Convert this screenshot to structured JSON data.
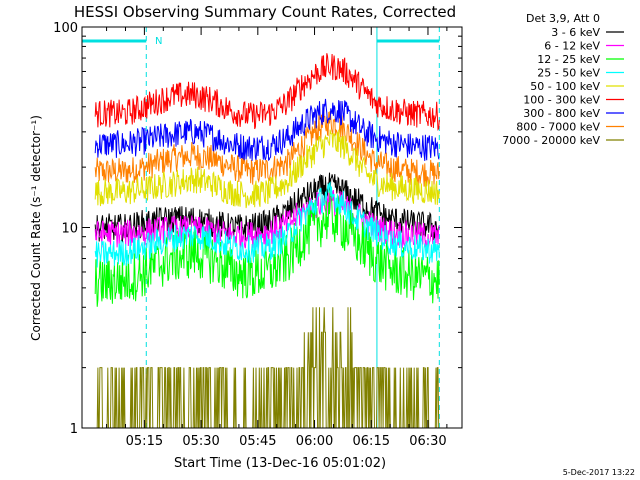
{
  "chart_data": {
    "type": "line",
    "title": "HESSI Observing Summary Count Rates, Corrected",
    "xlabel": "Start Time (13-Dec-16 05:01:02)",
    "ylabel": "Corrected Count Rate (s⁻¹ detector⁻¹)",
    "x_unit": "minutes after 05:00 UT",
    "xlim": [
      -1.5,
      99
    ],
    "ylim": [
      1,
      100
    ],
    "y_scale": "log",
    "x_ticks": [
      {
        "value": 15,
        "label": "05:15"
      },
      {
        "value": 30,
        "label": "05:30"
      },
      {
        "value": 45,
        "label": "05:45"
      },
      {
        "value": 60,
        "label": "06:00"
      },
      {
        "value": 75,
        "label": "06:15"
      },
      {
        "value": 90,
        "label": "06:30"
      }
    ],
    "y_ticks": [
      {
        "value": 1,
        "label": "1"
      },
      {
        "value": 10,
        "label": "10"
      },
      {
        "value": 100,
        "label": "100"
      }
    ],
    "legend_position": "top-right",
    "legend_header": "Det 3,9, Att 0",
    "annotation": {
      "label": "N",
      "x": 18
    },
    "night_intervals": [
      [
        -1.5,
        15.5
      ],
      [
        76.5,
        93
      ]
    ],
    "series": [
      {
        "name": "3 - 6 keV",
        "color": "#000000",
        "x": [
          2,
          10,
          15,
          22,
          28,
          33,
          38,
          43,
          48,
          53,
          57,
          61,
          64,
          67,
          70,
          73,
          76,
          80,
          85,
          93
        ],
        "y": [
          10,
          10,
          10.5,
          11,
          11,
          10.5,
          10,
          10,
          10.5,
          12,
          14,
          15.5,
          16,
          15.5,
          14,
          13,
          12,
          11,
          10.5,
          10
        ]
      },
      {
        "name": "6 - 12 keV",
        "color": "#ff00ff",
        "x": [
          2,
          10,
          15,
          22,
          28,
          33,
          38,
          43,
          48,
          53,
          57,
          61,
          64,
          67,
          70,
          73,
          76,
          80,
          85,
          93
        ],
        "y": [
          9.3,
          9.3,
          9.5,
          9.8,
          9.8,
          9.5,
          9.2,
          9.2,
          9.5,
          10.5,
          12,
          13,
          13.5,
          13,
          12,
          11,
          10,
          9.5,
          9.2,
          9
        ]
      },
      {
        "name": "12 - 25 keV",
        "color": "#00ff00",
        "x": [
          2,
          10,
          15,
          22,
          28,
          33,
          38,
          43,
          48,
          53,
          57,
          61,
          64,
          67,
          70,
          73,
          76,
          80,
          85,
          93
        ],
        "y": [
          5.3,
          5.5,
          6,
          7,
          7.5,
          7,
          6,
          5.8,
          6,
          7,
          9,
          10.5,
          11.5,
          10.5,
          9,
          8,
          7,
          6.2,
          5.8,
          5.5
        ]
      },
      {
        "name": "25 - 50 keV",
        "color": "#00ffff",
        "x": [
          2,
          10,
          15,
          22,
          28,
          33,
          38,
          43,
          48,
          53,
          57,
          61,
          64,
          67,
          70,
          73,
          76,
          80,
          85,
          93
        ],
        "y": [
          7.3,
          7.5,
          8,
          8.8,
          9.2,
          8.8,
          8,
          7.8,
          8,
          9,
          11.5,
          13.5,
          14.5,
          13.5,
          11.5,
          10.5,
          9.5,
          8.5,
          8,
          7.6
        ]
      },
      {
        "name": "50 - 100 keV",
        "color": "#e0e000",
        "x": [
          2,
          10,
          15,
          22,
          28,
          33,
          38,
          43,
          48,
          53,
          57,
          61,
          64,
          67,
          70,
          73,
          76,
          80,
          85,
          93
        ],
        "y": [
          15,
          15,
          15.5,
          16.5,
          17.5,
          16.5,
          15,
          14.5,
          15,
          17,
          21,
          25,
          27,
          26,
          23,
          19,
          17,
          16,
          15.5,
          15
        ]
      },
      {
        "name": "100 - 300 keV",
        "color": "#ff0000",
        "x": [
          2,
          10,
          15,
          22,
          28,
          33,
          38,
          43,
          48,
          53,
          57,
          61,
          64,
          67,
          70,
          73,
          76,
          80,
          85,
          93
        ],
        "y": [
          37,
          37,
          40,
          45,
          46,
          43,
          38,
          36,
          37,
          42,
          52,
          60,
          64,
          62,
          56,
          48,
          42,
          39,
          37,
          36
        ]
      },
      {
        "name": "300 - 800 keV",
        "color": "#0000ff",
        "x": [
          2,
          10,
          15,
          22,
          28,
          33,
          38,
          43,
          48,
          53,
          57,
          61,
          64,
          67,
          70,
          73,
          76,
          80,
          85,
          93
        ],
        "y": [
          26,
          26,
          27,
          29,
          30,
          28.5,
          26,
          25,
          25.5,
          28,
          33,
          37,
          39,
          38,
          34,
          30,
          28,
          26.5,
          25.5,
          25
        ]
      },
      {
        "name": "800 - 7000 keV",
        "color": "#ff8000",
        "x": [
          2,
          10,
          15,
          22,
          28,
          33,
          38,
          43,
          48,
          53,
          57,
          61,
          64,
          67,
          70,
          73,
          76,
          80,
          85,
          93
        ],
        "y": [
          19,
          19,
          20,
          22,
          23,
          22,
          20,
          19,
          19.5,
          21,
          26,
          31,
          34,
          32,
          28,
          24,
          21,
          20,
          19,
          18.5
        ]
      },
      {
        "name": "7000 - 20000 keV",
        "color": "#808000",
        "x": [
          2,
          10,
          15,
          22,
          28,
          33,
          38,
          43,
          48,
          53,
          57,
          61,
          64,
          67,
          70,
          73,
          76,
          80,
          85,
          93
        ],
        "y": [
          1,
          1,
          1.5,
          2,
          2,
          1.5,
          1,
          1,
          1.3,
          1.6,
          2.5,
          3,
          3,
          3,
          2.5,
          1.8,
          1.5,
          1.2,
          1,
          1
        ]
      }
    ]
  },
  "footer": {
    "date_stamp": "5-Dec-2017 13:22"
  }
}
